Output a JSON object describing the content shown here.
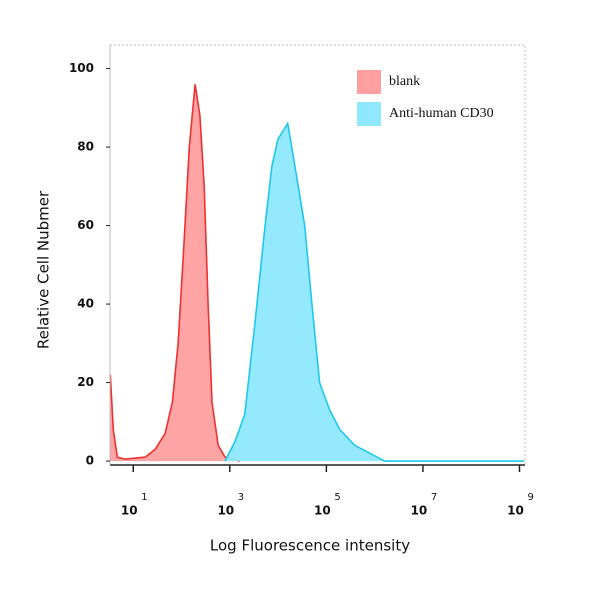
{
  "chart_data": {
    "type": "area",
    "xlabel": "Log Fluorescence intensity",
    "ylabel": "Relative Cell Nubmer",
    "xscale": "log",
    "xlim": [
      3.3,
      1300000000
    ],
    "ylim": [
      -1,
      106
    ],
    "xticks": [
      {
        "value": 10,
        "label": "10",
        "sup": "1"
      },
      {
        "value": 1000,
        "label": "10",
        "sup": "3"
      },
      {
        "value": 100000,
        "label": "10",
        "sup": "5"
      },
      {
        "value": 10000000,
        "label": "10",
        "sup": "7"
      },
      {
        "value": 1000000000,
        "label": "10",
        "sup": "9"
      }
    ],
    "yticks": [
      0,
      20,
      40,
      60,
      80,
      100
    ],
    "legend": "upper right",
    "series": [
      {
        "name": "blank",
        "color": "#ff9f9f",
        "edge": "#ee3030",
        "x": [
          3.35,
          3.86,
          4.68,
          6.8,
          17.8,
          28.5,
          45.7,
          64.6,
          85,
          112,
          145,
          191,
          240,
          295,
          355,
          427,
          575,
          794,
          1620
        ],
        "values": [
          22,
          8,
          1,
          0.5,
          1,
          3,
          7,
          15,
          30,
          55,
          80,
          96,
          88,
          70,
          40,
          15,
          4,
          1,
          0
        ]
      },
      {
        "name": "Anti-human CD30",
        "color": "#8fe8ff",
        "edge": "#1ec8ec",
        "x": [
          794,
          1290,
          2040,
          3310,
          5370,
          7410,
          9900,
          15800,
          22400,
          35500,
          50100,
          72400,
          117000,
          191000,
          389000,
          794000,
          1620000,
          1260000000
        ],
        "values": [
          0,
          5,
          12,
          35,
          60,
          75,
          82,
          86,
          75,
          60,
          40,
          20,
          13,
          8,
          4,
          2,
          0,
          0
        ]
      }
    ]
  }
}
